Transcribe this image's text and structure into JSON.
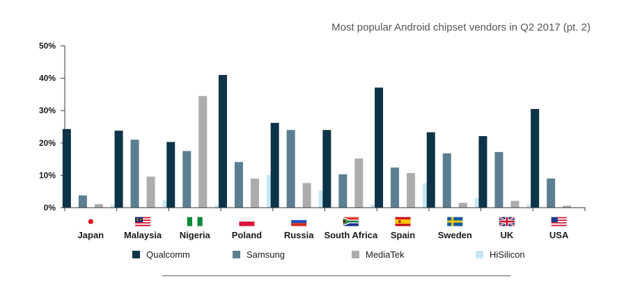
{
  "chart_data": {
    "type": "bar",
    "title": "Most popular Android chipset vendors in Q2 2017 (pt. 2)",
    "xlabel": "",
    "ylabel": "",
    "ylim": [
      0,
      50
    ],
    "yticks": [
      "0%",
      "10%",
      "20%",
      "30%",
      "40%",
      "50%"
    ],
    "grid": false,
    "legend_position": "bottom",
    "categories": [
      "Japan",
      "Malaysia",
      "Nigeria",
      "Poland",
      "Russia",
      "South Africa",
      "Spain",
      "Sweden",
      "UK",
      "USA"
    ],
    "category_flags": [
      "flag-japan-icon",
      "flag-malaysia-icon",
      "flag-nigeria-icon",
      "flag-poland-icon",
      "flag-russia-icon",
      "flag-south-africa-icon",
      "flag-spain-icon",
      "flag-sweden-icon",
      "flag-uk-icon",
      "flag-usa-icon"
    ],
    "series": [
      {
        "name": "Qualcomm",
        "color": "#0d3349",
        "values": [
          24.3,
          23.8,
          20.3,
          41.0,
          26.2,
          24.0,
          37.1,
          23.3,
          22.1,
          30.5
        ]
      },
      {
        "name": "Samsung",
        "color": "#5b7f91",
        "values": [
          3.8,
          21.0,
          17.5,
          14.1,
          24.0,
          10.3,
          12.4,
          16.8,
          17.2,
          9.0
        ]
      },
      {
        "name": "MediaTek",
        "color": "#acacac",
        "values": [
          1.1,
          9.6,
          34.5,
          9.0,
          7.6,
          15.2,
          10.7,
          1.5,
          2.1,
          0.6
        ]
      },
      {
        "name": "HiSilicon",
        "color": "#c5e7f6",
        "values": [
          0.9,
          2.3,
          0.8,
          10.1,
          5.3,
          1.0,
          7.5,
          3.0,
          1.0,
          0.2
        ]
      }
    ]
  }
}
